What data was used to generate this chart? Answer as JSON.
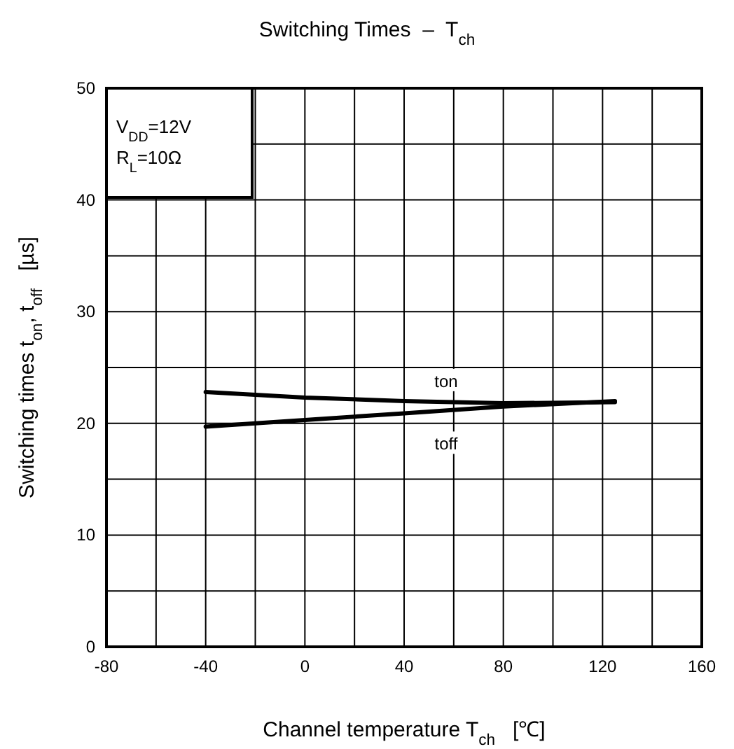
{
  "chart_data": {
    "type": "line",
    "title": "Switching Times  –  T$_{ch}$",
    "xlabel": "Channel temperature T$_{ch}$   [℃]",
    "ylabel": "Switching times t$_{on}$, t$_{off}$   [µs]",
    "annotations": [
      "V$_{DD}$=12V",
      "R$_{L}$=10Ω"
    ],
    "x": [
      -40,
      0,
      40,
      80,
      125
    ],
    "series": [
      {
        "name": "ton",
        "color": "#000000",
        "values": [
          22.8,
          22.3,
          22.0,
          21.8,
          21.9
        ]
      },
      {
        "name": "toff",
        "color": "#000000",
        "values": [
          19.7,
          20.3,
          20.9,
          21.5,
          22.0
        ]
      }
    ],
    "xlim": [
      -80,
      160
    ],
    "xticks": [
      -80,
      {
        "value": -60,
        "label": null
      },
      -40,
      {
        "value": -20,
        "label": null
      },
      0,
      {
        "value": 20,
        "label": null
      },
      40,
      {
        "value": 60,
        "label": null
      },
      80,
      {
        "value": 100,
        "label": null
      },
      120,
      {
        "value": 140,
        "label": null
      },
      160
    ],
    "ylim": [
      0,
      50
    ],
    "yticks": [
      0,
      {
        "value": 5,
        "label": null
      },
      10,
      {
        "value": 15,
        "label": null
      },
      20,
      {
        "value": 25,
        "label": null
      },
      30,
      {
        "value": 35,
        "label": null
      },
      40,
      {
        "value": 45,
        "label": null
      },
      50
    ],
    "grid": true,
    "marker": "none",
    "line_style": "solid"
  }
}
